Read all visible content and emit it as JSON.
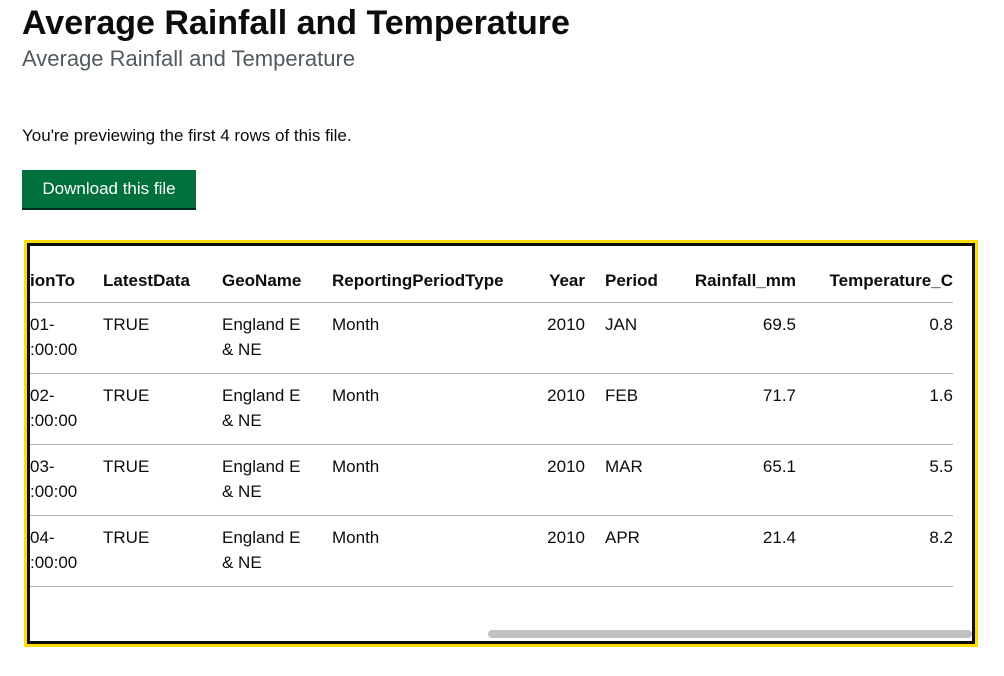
{
  "header": {
    "title": "Average Rainfall and Temperature",
    "subtitle": "Average Rainfall and Temperature"
  },
  "preview_note": "You're previewing the first 4 rows of this file.",
  "button": "Download this file",
  "table": {
    "columns": [
      "ionTo",
      "LatestData",
      "GeoName",
      "ReportingPeriodType",
      "Year",
      "Period",
      "Rainfall_mm",
      "Temperature_C"
    ],
    "rows": [
      [
        "01-\n:00:00",
        "TRUE",
        "England E & NE",
        "Month",
        2010,
        "JAN",
        69.5,
        0.8
      ],
      [
        "02-\n:00:00",
        "TRUE",
        "England E & NE",
        "Month",
        2010,
        "FEB",
        71.7,
        1.6
      ],
      [
        "03-\n:00:00",
        "TRUE",
        "England E & NE",
        "Month",
        2010,
        "MAR",
        65.1,
        5.5
      ],
      [
        "04-\n:00:00",
        "TRUE",
        "England E & NE",
        "Month",
        2010,
        "APR",
        21.4,
        8.2
      ]
    ]
  }
}
